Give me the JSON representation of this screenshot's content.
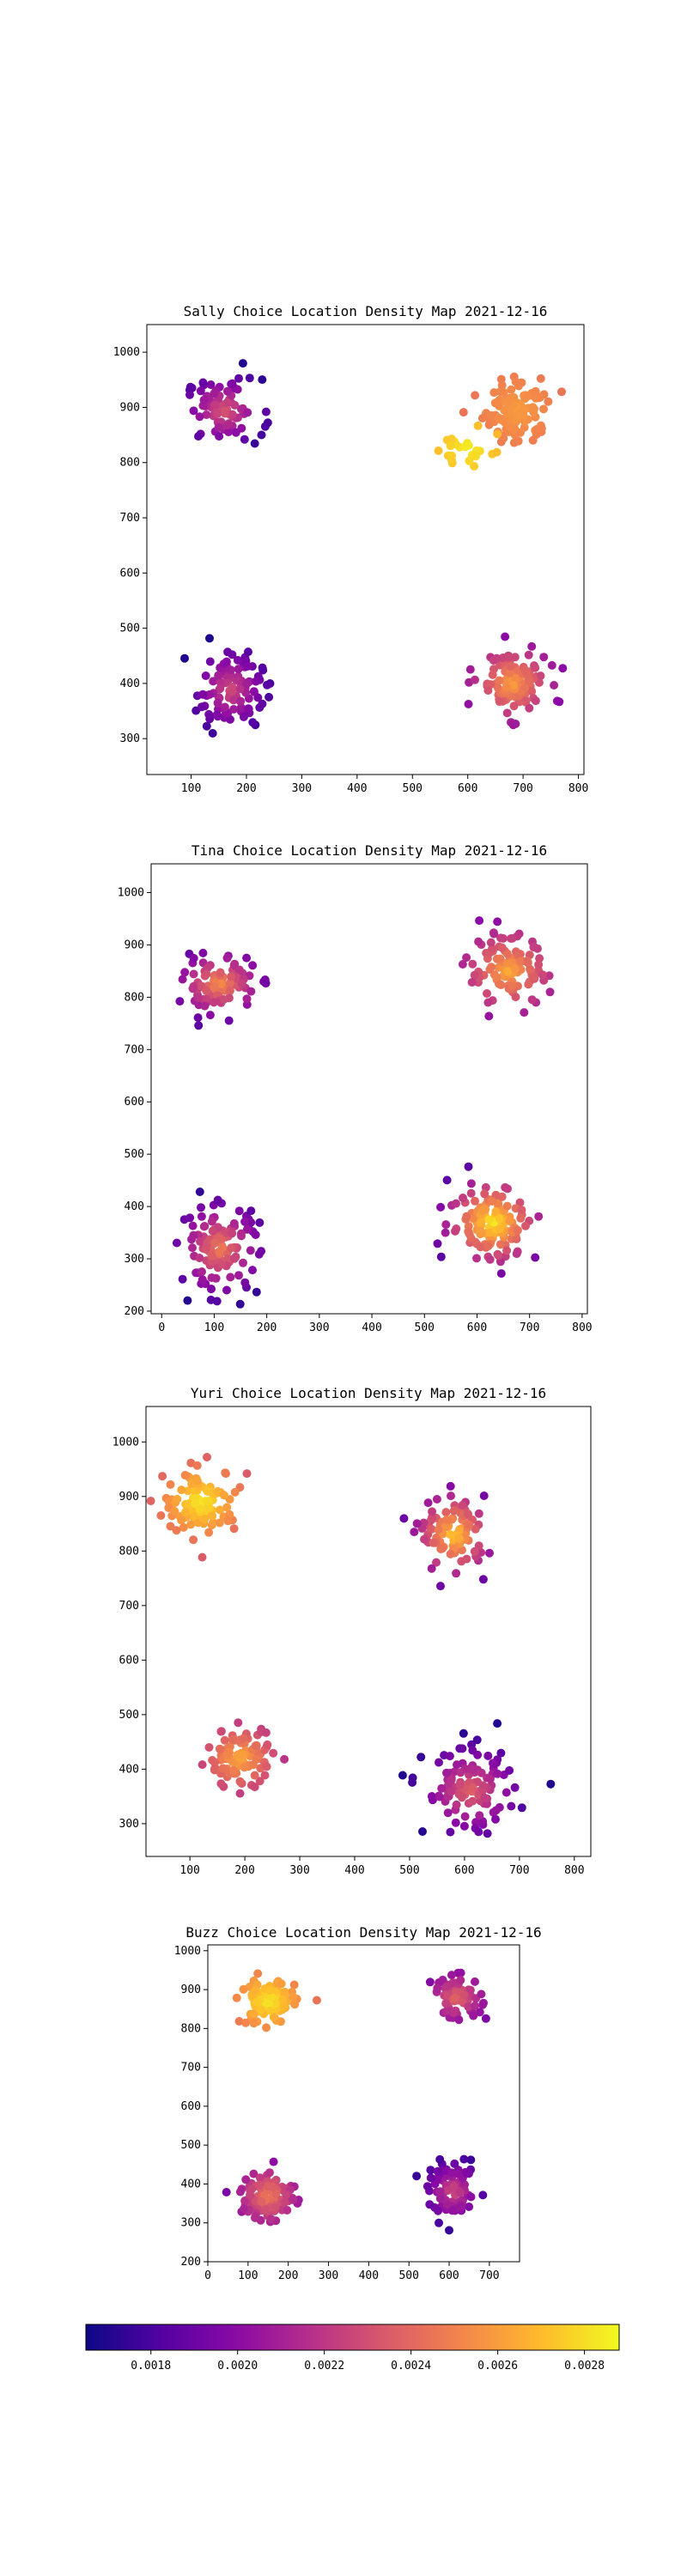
{
  "colorbar": {
    "colormap": "plasma",
    "min": 0.00165,
    "max": 0.00288,
    "ticks": [
      {
        "value": 0.0018,
        "label": "0.0018"
      },
      {
        "value": 0.002,
        "label": "0.0020"
      },
      {
        "value": 0.0022,
        "label": "0.0022"
      },
      {
        "value": 0.0024,
        "label": "0.0024"
      },
      {
        "value": 0.0026,
        "label": "0.0026"
      },
      {
        "value": 0.0028,
        "label": "0.0028"
      }
    ]
  },
  "chart_data": [
    {
      "type": "scatter",
      "title": "Sally Choice Location Density Map 2021-12-16",
      "xlim": [
        20,
        810
      ],
      "ylim": [
        235,
        1050
      ],
      "xticks": [
        100,
        200,
        300,
        400,
        500,
        600,
        700,
        800
      ],
      "yticks": [
        300,
        400,
        500,
        600,
        700,
        800,
        900,
        1000
      ],
      "clusters": [
        {
          "cx": 160,
          "cy": 895,
          "sx": 45,
          "sy": 38,
          "n": 85,
          "dmin": 0.0017,
          "dmax": 0.00235
        },
        {
          "cx": 690,
          "cy": 895,
          "sx": 40,
          "sy": 38,
          "n": 110,
          "dmin": 0.00245,
          "dmax": 0.0026
        },
        {
          "cx": 600,
          "cy": 825,
          "sx": 35,
          "sy": 30,
          "n": 25,
          "dmin": 0.00265,
          "dmax": 0.00285
        },
        {
          "cx": 170,
          "cy": 390,
          "sx": 40,
          "sy": 45,
          "n": 110,
          "dmin": 0.0017,
          "dmax": 0.0023
        },
        {
          "cx": 680,
          "cy": 400,
          "sx": 42,
          "sy": 38,
          "n": 120,
          "dmin": 0.002,
          "dmax": 0.00262
        }
      ]
    },
    {
      "type": "scatter",
      "title": "Tina Choice Location Density Map 2021-12-16",
      "xlim": [
        -20,
        810
      ],
      "ylim": [
        195,
        1055
      ],
      "xticks": [
        0,
        100,
        200,
        300,
        400,
        500,
        600,
        700,
        800
      ],
      "yticks": [
        200,
        300,
        400,
        500,
        600,
        700,
        800,
        900,
        1000
      ],
      "clusters": [
        {
          "cx": 110,
          "cy": 825,
          "sx": 45,
          "sy": 35,
          "n": 100,
          "dmin": 0.00185,
          "dmax": 0.00255
        },
        {
          "cx": 660,
          "cy": 850,
          "sx": 50,
          "sy": 45,
          "n": 110,
          "dmin": 0.002,
          "dmax": 0.00265
        },
        {
          "cx": 110,
          "cy": 320,
          "sx": 50,
          "sy": 55,
          "n": 120,
          "dmin": 0.0017,
          "dmax": 0.0025
        },
        {
          "cx": 630,
          "cy": 370,
          "sx": 55,
          "sy": 50,
          "n": 130,
          "dmin": 0.00185,
          "dmax": 0.00285
        }
      ]
    },
    {
      "type": "scatter",
      "title": "Yuri Choice Location Density Map 2021-12-16",
      "xlim": [
        20,
        830
      ],
      "ylim": [
        240,
        1065
      ],
      "xticks": [
        100,
        200,
        300,
        400,
        500,
        600,
        700,
        800
      ],
      "yticks": [
        300,
        400,
        500,
        600,
        700,
        800,
        900,
        1000
      ],
      "clusters": [
        {
          "cx": 120,
          "cy": 890,
          "sx": 45,
          "sy": 40,
          "n": 110,
          "dmin": 0.00235,
          "dmax": 0.00285
        },
        {
          "cx": 580,
          "cy": 830,
          "sx": 40,
          "sy": 45,
          "n": 100,
          "dmin": 0.0019,
          "dmax": 0.00275
        },
        {
          "cx": 190,
          "cy": 420,
          "sx": 40,
          "sy": 35,
          "n": 100,
          "dmin": 0.00215,
          "dmax": 0.00265
        },
        {
          "cx": 610,
          "cy": 360,
          "sx": 55,
          "sy": 50,
          "n": 120,
          "dmin": 0.0017,
          "dmax": 0.0024
        }
      ]
    },
    {
      "type": "scatter",
      "title": "Buzz Choice Location Density Map 2021-12-16",
      "xlim": [
        0,
        775
      ],
      "ylim": [
        200,
        1015
      ],
      "xticks": [
        0,
        100,
        200,
        300,
        400,
        500,
        600,
        700
      ],
      "yticks": [
        200,
        300,
        400,
        500,
        600,
        700,
        800,
        900,
        1000
      ],
      "clusters": [
        {
          "cx": 150,
          "cy": 870,
          "sx": 45,
          "sy": 40,
          "n": 110,
          "dmin": 0.00245,
          "dmax": 0.00285
        },
        {
          "cx": 620,
          "cy": 880,
          "sx": 40,
          "sy": 35,
          "n": 80,
          "dmin": 0.00195,
          "dmax": 0.0024
        },
        {
          "cx": 150,
          "cy": 370,
          "sx": 45,
          "sy": 45,
          "n": 110,
          "dmin": 0.00195,
          "dmax": 0.0025
        },
        {
          "cx": 610,
          "cy": 380,
          "sx": 40,
          "sy": 45,
          "n": 90,
          "dmin": 0.00175,
          "dmax": 0.0023
        }
      ]
    }
  ]
}
